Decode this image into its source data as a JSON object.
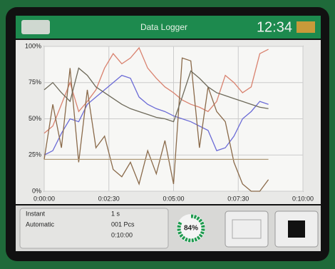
{
  "header": {
    "title": "Data Logger",
    "time": "12:34"
  },
  "chart_data": {
    "type": "line",
    "x": [
      0,
      20,
      40,
      60,
      80,
      100,
      120,
      140,
      160,
      180,
      200,
      220,
      240,
      260,
      280,
      300,
      320,
      340,
      360,
      380,
      400,
      420,
      440,
      460,
      480,
      500,
      520
    ],
    "series": [
      {
        "color": "#d9826f",
        "values": [
          40,
          45,
          60,
          75,
          55,
          62,
          70,
          85,
          95,
          88,
          92,
          99,
          85,
          78,
          72,
          68,
          63,
          60,
          58,
          55,
          62,
          80,
          75,
          68,
          72,
          95,
          98
        ]
      },
      {
        "color": "#6b6bd6",
        "values": [
          25,
          28,
          40,
          50,
          48,
          60,
          65,
          70,
          75,
          80,
          78,
          65,
          60,
          57,
          55,
          52,
          50,
          48,
          45,
          42,
          28,
          30,
          38,
          50,
          55,
          62,
          60
        ]
      },
      {
        "color": "#8a6a4a",
        "values": [
          22,
          60,
          30,
          85,
          20,
          70,
          30,
          38,
          15,
          10,
          20,
          5,
          28,
          12,
          35,
          5,
          92,
          90,
          30,
          72,
          55,
          48,
          20,
          5,
          0,
          0,
          8
        ]
      },
      {
        "color": "#6e6a5a",
        "values": [
          70,
          75,
          68,
          62,
          85,
          80,
          72,
          68,
          64,
          60,
          57,
          55,
          53,
          51,
          50,
          48,
          65,
          83,
          78,
          72,
          68,
          66,
          64,
          62,
          60,
          58,
          57
        ]
      },
      {
        "color": "#b09a78",
        "values": [
          22,
          22,
          22,
          22,
          22,
          22,
          22,
          22,
          22,
          22,
          22,
          22,
          22,
          22,
          22,
          22,
          22,
          22,
          22,
          22,
          22,
          22,
          22,
          22,
          22,
          22,
          22
        ]
      }
    ],
    "xlim": [
      0,
      600
    ],
    "xticks": [
      {
        "value": 0,
        "label": "0:00:00"
      },
      {
        "value": 150,
        "label": "0:02:30"
      },
      {
        "value": 300,
        "label": "0:05:00"
      },
      {
        "value": 450,
        "label": "0:07:30"
      },
      {
        "value": 600,
        "label": "0:10:00"
      }
    ],
    "ylim": [
      0,
      100
    ],
    "yticks": [
      {
        "value": 0,
        "label": "0%"
      },
      {
        "value": 25,
        "label": "25%"
      },
      {
        "value": 50,
        "label": "50%"
      },
      {
        "value": 75,
        "label": "75%"
      },
      {
        "value": 100,
        "label": "100%"
      }
    ],
    "grid": true
  },
  "status": {
    "mode_label": "Instant",
    "mode_value": "1 s",
    "trigger_label": "Automatic",
    "count": "001 Pcs",
    "duration": "0:10:00"
  },
  "gauge": {
    "value": 84,
    "label": "84%"
  }
}
